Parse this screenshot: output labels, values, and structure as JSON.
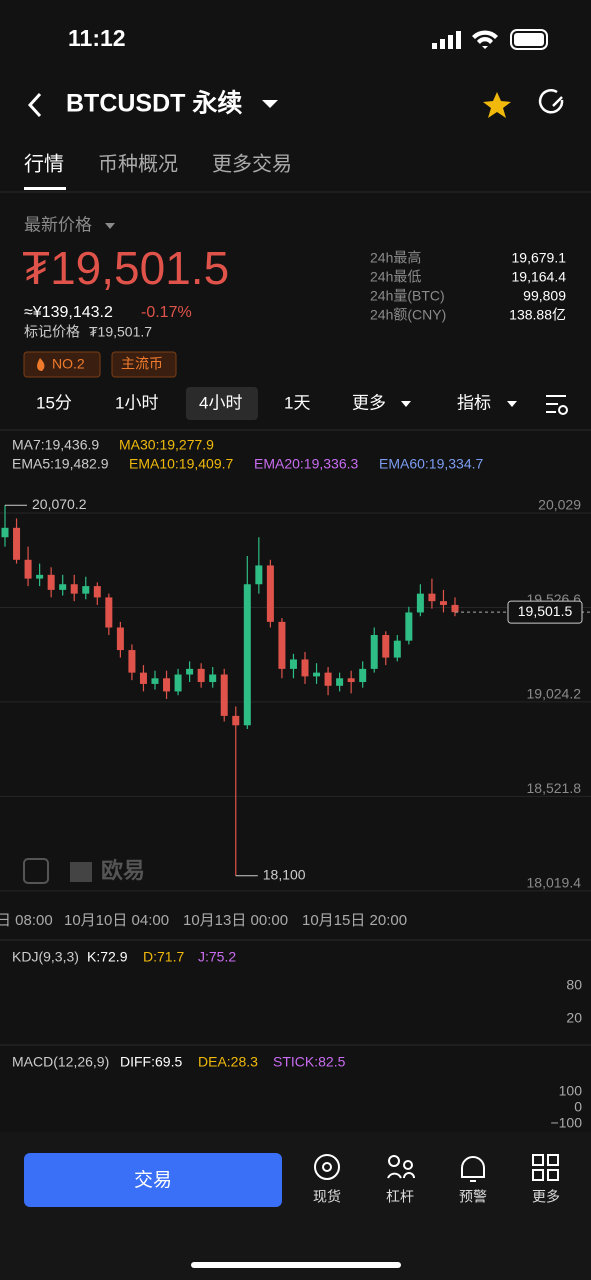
{
  "status_bar": {
    "time": "11:12"
  },
  "header": {
    "title": "BTCUSDT 永续"
  },
  "tabs": [
    "行情",
    "币种概况",
    "更多交易"
  ],
  "price": {
    "label": "最新价格",
    "last": "₮19,501.5",
    "cny": "≈¥139,143.2",
    "change": "-0.17%",
    "mark_label": "标记价格",
    "mark_value": "₮19,501.7"
  },
  "stats": [
    [
      "24h最高",
      "19,679.1"
    ],
    [
      "24h最低",
      "19,164.4"
    ],
    [
      "24h量(BTC)",
      "99,809"
    ],
    [
      "24h额(CNY)",
      "138.88亿"
    ]
  ],
  "badges": [
    "NO.2",
    "主流币"
  ],
  "intervals": [
    "15分",
    "1小时",
    "4小时",
    "1天",
    "更多",
    "指标"
  ],
  "indicators": {
    "line1": [
      "MA7:19,436.9",
      "MA30:19,277.9"
    ],
    "line2": [
      "EMA5:19,482.9",
      "EMA10:19,409.7",
      "EMA20:19,336.3",
      "EMA60:19,334.7"
    ]
  },
  "chart_data": {
    "type": "candlestick",
    "open": [
      19900,
      19950,
      19780,
      19680,
      19700,
      19620,
      19650,
      19600,
      19640,
      19580,
      19420,
      19300,
      19180,
      19120,
      19150,
      19080,
      19170,
      19200,
      19130,
      19170,
      18950,
      18900,
      19650,
      19750,
      19450,
      19200,
      19250,
      19160,
      19180,
      19110,
      19150,
      19130,
      19200,
      19380,
      19260,
      19350,
      19500,
      19600,
      19560,
      19540
    ],
    "high": [
      20070.2,
      20000,
      19850,
      19760,
      19740,
      19700,
      19700,
      19690,
      19660,
      19600,
      19450,
      19330,
      19220,
      19190,
      19190,
      19200,
      19240,
      19230,
      19210,
      19200,
      19000,
      19800,
      19900,
      19780,
      19470,
      19280,
      19290,
      19230,
      19210,
      19180,
      19190,
      19240,
      19420,
      19400,
      19380,
      19530,
      19650,
      19680,
      19620,
      19580
    ],
    "low": [
      19850,
      19760,
      19640,
      19640,
      19580,
      19590,
      19560,
      19570,
      19540,
      19380,
      19260,
      19140,
      19080,
      19090,
      19040,
      19060,
      19130,
      19100,
      19100,
      18920,
      18100,
      18880,
      19600,
      19420,
      19150,
      19150,
      19120,
      19120,
      19060,
      19080,
      19070,
      19100,
      19180,
      19220,
      19240,
      19330,
      19480,
      19520,
      19500,
      19480
    ],
    "close": [
      19950,
      19780,
      19680,
      19700,
      19620,
      19650,
      19600,
      19640,
      19580,
      19420,
      19300,
      19180,
      19120,
      19150,
      19080,
      19170,
      19200,
      19130,
      19170,
      18950,
      18900,
      19650,
      19750,
      19450,
      19200,
      19250,
      19160,
      19180,
      19110,
      19150,
      19130,
      19200,
      19380,
      19260,
      19350,
      19500,
      19600,
      19560,
      19540,
      19501.5
    ],
    "up_color": "#2ebd85",
    "down_color": "#e0534a",
    "ylim": [
      17971,
      20417
    ],
    "yticks": [
      {
        "value": 20029,
        "label": "20,029"
      },
      {
        "value": 19526.6,
        "label": "19,526.6"
      },
      {
        "value": 19024.2,
        "label": "19,024.2"
      },
      {
        "value": 18521.8,
        "label": "18,521.8"
      },
      {
        "value": 18019.4,
        "label": "18,019.4"
      }
    ],
    "last_price": {
      "value": 19501.5,
      "label": "19,501.5"
    },
    "annotations": [
      {
        "value": 20070.2,
        "label": "20,070.2"
      },
      {
        "value": 18100,
        "label": "18,100"
      }
    ],
    "x_axis_labels": [
      "日 08:00",
      "10月10日 04:00",
      "10月13日 00:00",
      "10月15日 20:00"
    ],
    "watermark": "欧易"
  },
  "kdj": {
    "title": "KDJ(9,3,3)",
    "k": "K:72.9",
    "d": "D:71.7",
    "j": "J:75.2",
    "yticks": [
      80,
      20
    ]
  },
  "macd": {
    "title": "MACD(12,26,9)",
    "diff": "DIFF:69.5",
    "dea": "DEA:28.3",
    "stick": "STICK:82.5",
    "yticks": [
      100,
      0,
      {
        "value": -100,
        "label": "−100"
      }
    ]
  },
  "bottom_nav": {
    "trade": "交易",
    "items": [
      "现货",
      "杠杆",
      "预警",
      "更多"
    ]
  }
}
